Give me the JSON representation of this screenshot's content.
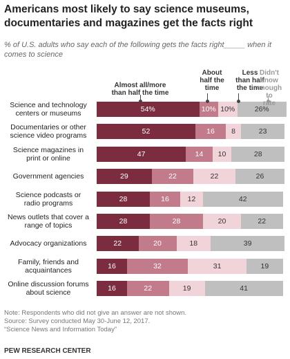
{
  "chart_data": {
    "type": "stacked-bar-horizontal",
    "title": "Americans most likely to say science museums, documentaries and magazines get the facts right",
    "subtitle": "% of U.S. adults who say each of the following gets the facts right_____ when it comes to science",
    "categories": [
      "Science and technology\ncenters or museums",
      "Documentaries or other\nscience video programs",
      "Science magazines in\nprint or online",
      "Government agencies",
      "Science podcasts or\nradio programs",
      "News outlets that cover a\nrange of topics",
      "Advocacy organizations",
      "Family, friends and\nacquaintances",
      "Online discussion forums\nabout science"
    ],
    "series": [
      {
        "name": "Almost all/more\nthan half the time",
        "color": "#7b2c3f",
        "label_color": "#ffffff",
        "values": [
          54,
          52,
          47,
          29,
          28,
          28,
          22,
          16,
          16
        ],
        "value_labels": [
          "54%",
          "52",
          "47",
          "29",
          "28",
          "28",
          "22",
          "16",
          "16"
        ]
      },
      {
        "name": "About\nhalf the\ntime",
        "color": "#c27b8b",
        "label_color": "#ffffff",
        "values": [
          10,
          16,
          14,
          22,
          16,
          28,
          20,
          32,
          22
        ],
        "value_labels": [
          "10%",
          "16",
          "14",
          "22",
          "16",
          "28",
          "20",
          "32",
          "22"
        ]
      },
      {
        "name": "Less\nthan half\nthe time",
        "color": "#f0d4d9",
        "label_color": "#333333",
        "values": [
          10,
          8,
          10,
          22,
          12,
          20,
          18,
          31,
          19
        ],
        "value_labels": [
          "10%",
          "8",
          "10",
          "22",
          "12",
          "20",
          "18",
          "31",
          "19"
        ]
      },
      {
        "name": "Didn't know\nenough to\nrate",
        "color": "#bfbfbf",
        "label_color": "#333333",
        "header_color": "#999999",
        "values": [
          26,
          23,
          28,
          26,
          42,
          22,
          39,
          19,
          41
        ],
        "value_labels": [
          "26%",
          "23",
          "28",
          "26",
          "42",
          "22",
          "39",
          "19",
          "41"
        ]
      }
    ],
    "notes": [
      "Note: Respondents who did not give an answer are not shown.",
      "Source: Survey conducted May 30-June 12, 2017.",
      "“Science News and Information Today”"
    ],
    "brand": "PEW RESEARCH CENTER"
  }
}
